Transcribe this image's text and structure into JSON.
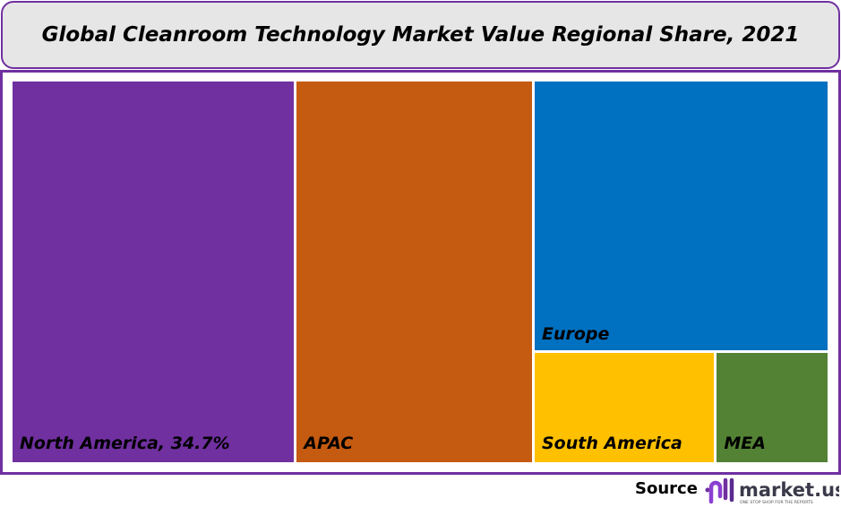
{
  "chart_data": {
    "type": "treemap",
    "title": "Global Cleanroom Technology Market Value Regional Share, 2021",
    "items": [
      {
        "name": "North America",
        "value": 34.7,
        "label": "North America, 34.7%",
        "color": "#7030a0"
      },
      {
        "name": "APAC",
        "value": 29.2,
        "label": "APAC",
        "color": "#c55a11"
      },
      {
        "name": "Europe",
        "value": 25.6,
        "label": "Europe",
        "color": "#0070c0"
      },
      {
        "name": "South America",
        "value": 6.5,
        "label": "South America",
        "color": "#ffc000"
      },
      {
        "name": "MEA",
        "value": 4.0,
        "label": "MEA",
        "color": "#548235"
      }
    ]
  },
  "footer": {
    "source_label": "Source",
    "logo_text": "market.us",
    "logo_tagline": "ONE STOP SHOP FOR THE REPORTS"
  }
}
